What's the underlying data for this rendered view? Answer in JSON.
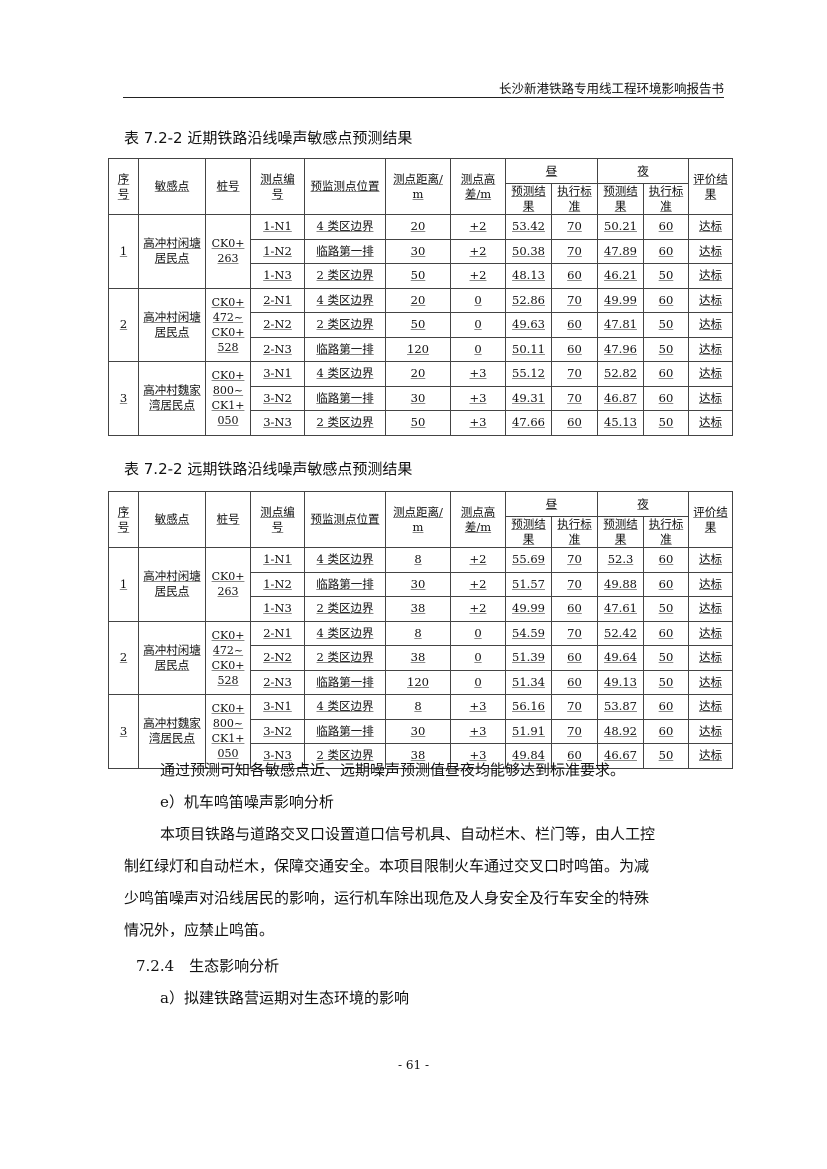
{
  "header": "长沙新港铁路专用线工程环境影响报告书",
  "table1_title": "表 7.2-2 近期铁路沿线噪声敏感点预测结果",
  "table2_title": "表 7.2-2 远期铁路沿线噪声敏感点预测结果",
  "columns": {
    "seq": "序号",
    "point": "敏感点",
    "stake": "桩号",
    "id": "测点编号",
    "pos": "预监测点位置",
    "dist": "测点距离/m",
    "height": "测点高差/m",
    "day": "昼",
    "night": "夜",
    "pred": "预测结果",
    "std": "执行标准",
    "eval": "评价结果"
  },
  "table1": [
    {
      "seq": "1",
      "point": "高冲村闲塘居民点",
      "stake": "CK0+263",
      "rows": [
        [
          "1-N1",
          "4 类区边界",
          "20",
          "+2",
          "53.42",
          "70",
          "50.21",
          "60",
          "达标"
        ],
        [
          "1-N2",
          "临路第一排",
          "30",
          "+2",
          "50.38",
          "70",
          "47.89",
          "60",
          "达标"
        ],
        [
          "1-N3",
          "2 类区边界",
          "50",
          "+2",
          "48.13",
          "60",
          "46.21",
          "50",
          "达标"
        ]
      ]
    },
    {
      "seq": "2",
      "point": "高冲村闲塘居民点",
      "stake": "CK0+472~CK0+528",
      "rows": [
        [
          "2-N1",
          "4 类区边界",
          "20",
          "0",
          "52.86",
          "70",
          "49.99",
          "60",
          "达标"
        ],
        [
          "2-N2",
          "2 类区边界",
          "50",
          "0",
          "49.63",
          "60",
          "47.81",
          "50",
          "达标"
        ],
        [
          "2-N3",
          "临路第一排",
          "120",
          "0",
          "50.11",
          "60",
          "47.96",
          "50",
          "达标"
        ]
      ]
    },
    {
      "seq": "3",
      "point": "高冲村魏家湾居民点",
      "stake": "CK0+800~CK1+050",
      "rows": [
        [
          "3-N1",
          "4 类区边界",
          "20",
          "+3",
          "55.12",
          "70",
          "52.82",
          "60",
          "达标"
        ],
        [
          "3-N2",
          "临路第一排",
          "30",
          "+3",
          "49.31",
          "70",
          "46.87",
          "60",
          "达标"
        ],
        [
          "3-N3",
          "2 类区边界",
          "50",
          "+3",
          "47.66",
          "60",
          "45.13",
          "50",
          "达标"
        ]
      ]
    }
  ],
  "table2": [
    {
      "seq": "1",
      "point": "高冲村闲塘居民点",
      "stake": "CK0+263",
      "rows": [
        [
          "1-N1",
          "4 类区边界",
          "8",
          "+2",
          "55.69",
          "70",
          "52.3",
          "60",
          "达标"
        ],
        [
          "1-N2",
          "临路第一排",
          "30",
          "+2",
          "51.57",
          "70",
          "49.88",
          "60",
          "达标"
        ],
        [
          "1-N3",
          "2 类区边界",
          "38",
          "+2",
          "49.99",
          "60",
          "47.61",
          "50",
          "达标"
        ]
      ]
    },
    {
      "seq": "2",
      "point": "高冲村闲塘居民点",
      "stake": "CK0+472~CK0+528",
      "rows": [
        [
          "2-N1",
          "4 类区边界",
          "8",
          "0",
          "54.59",
          "70",
          "52.42",
          "60",
          "达标"
        ],
        [
          "2-N2",
          "2 类区边界",
          "38",
          "0",
          "51.39",
          "60",
          "49.64",
          "50",
          "达标"
        ],
        [
          "2-N3",
          "临路第一排",
          "120",
          "0",
          "51.34",
          "60",
          "49.13",
          "50",
          "达标"
        ]
      ]
    },
    {
      "seq": "3",
      "point": "高冲村魏家湾居民点",
      "stake": "CK0+800~CK1+050",
      "rows": [
        [
          "3-N1",
          "4 类区边界",
          "8",
          "+3",
          "56.16",
          "70",
          "53.87",
          "60",
          "达标"
        ],
        [
          "3-N2",
          "临路第一排",
          "30",
          "+3",
          "51.91",
          "70",
          "48.92",
          "60",
          "达标"
        ],
        [
          "3-N3",
          "2 类区边界",
          "38",
          "+3",
          "49.84",
          "60",
          "46.67",
          "50",
          "达标"
        ]
      ]
    }
  ],
  "paragraphs": {
    "p1": "通过预测可知各敏感点近、远期噪声预测值昼夜均能够达到标准要求。",
    "p2": "e）机车鸣笛噪声影响分析",
    "p3a": "本项目铁路与道路交叉口设置道口信号机具、自动栏木、栏门等，由人工控",
    "p3b": "制红绿灯和自动栏木，保障交通安全。本项目限制火车通过交叉口时鸣笛。为减",
    "p3c": "少鸣笛噪声对沿线居民的影响，运行机车除出现危及人身安全及行车安全的特殊",
    "p3d": "情况外，应禁止鸣笛。",
    "p4": "7.2.4　生态影响分析",
    "p5": "a）拟建铁路营运期对生态环境的影响"
  },
  "page_number": "- 61 -"
}
